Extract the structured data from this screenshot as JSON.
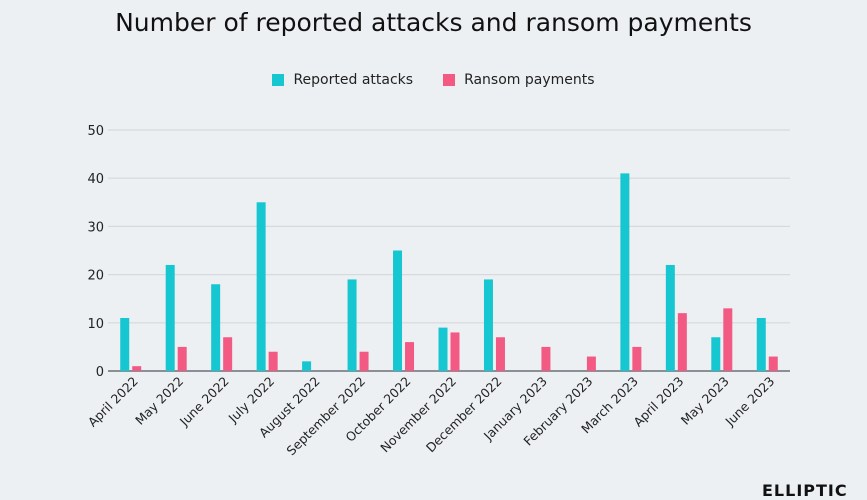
{
  "chart_data": {
    "type": "bar",
    "title": "Number of reported attacks and ransom payments",
    "categories": [
      "April 2022",
      "May 2022",
      "June 2022",
      "July 2022",
      "August 2022",
      "September 2022",
      "October 2022",
      "November 2022",
      "December 2022",
      "January 2023",
      "February 2023",
      "March 2023",
      "April 2023",
      "May 2023",
      "June 2023"
    ],
    "series": [
      {
        "name": "Reported attacks",
        "color": "#16c6d0",
        "values": [
          11,
          22,
          18,
          35,
          2,
          19,
          25,
          9,
          19,
          0,
          0,
          41,
          22,
          7,
          11
        ]
      },
      {
        "name": "Ransom payments",
        "color": "#f25a83",
        "values": [
          1,
          5,
          7,
          4,
          0,
          4,
          6,
          8,
          7,
          5,
          3,
          5,
          12,
          13,
          3
        ]
      }
    ],
    "ylim": [
      0,
      50
    ],
    "yticks": [
      0,
      10,
      20,
      30,
      40,
      50
    ],
    "grid": true,
    "legend_position": "top-center",
    "xlabel": "",
    "ylabel": ""
  },
  "logo": "ELLIPTIC"
}
